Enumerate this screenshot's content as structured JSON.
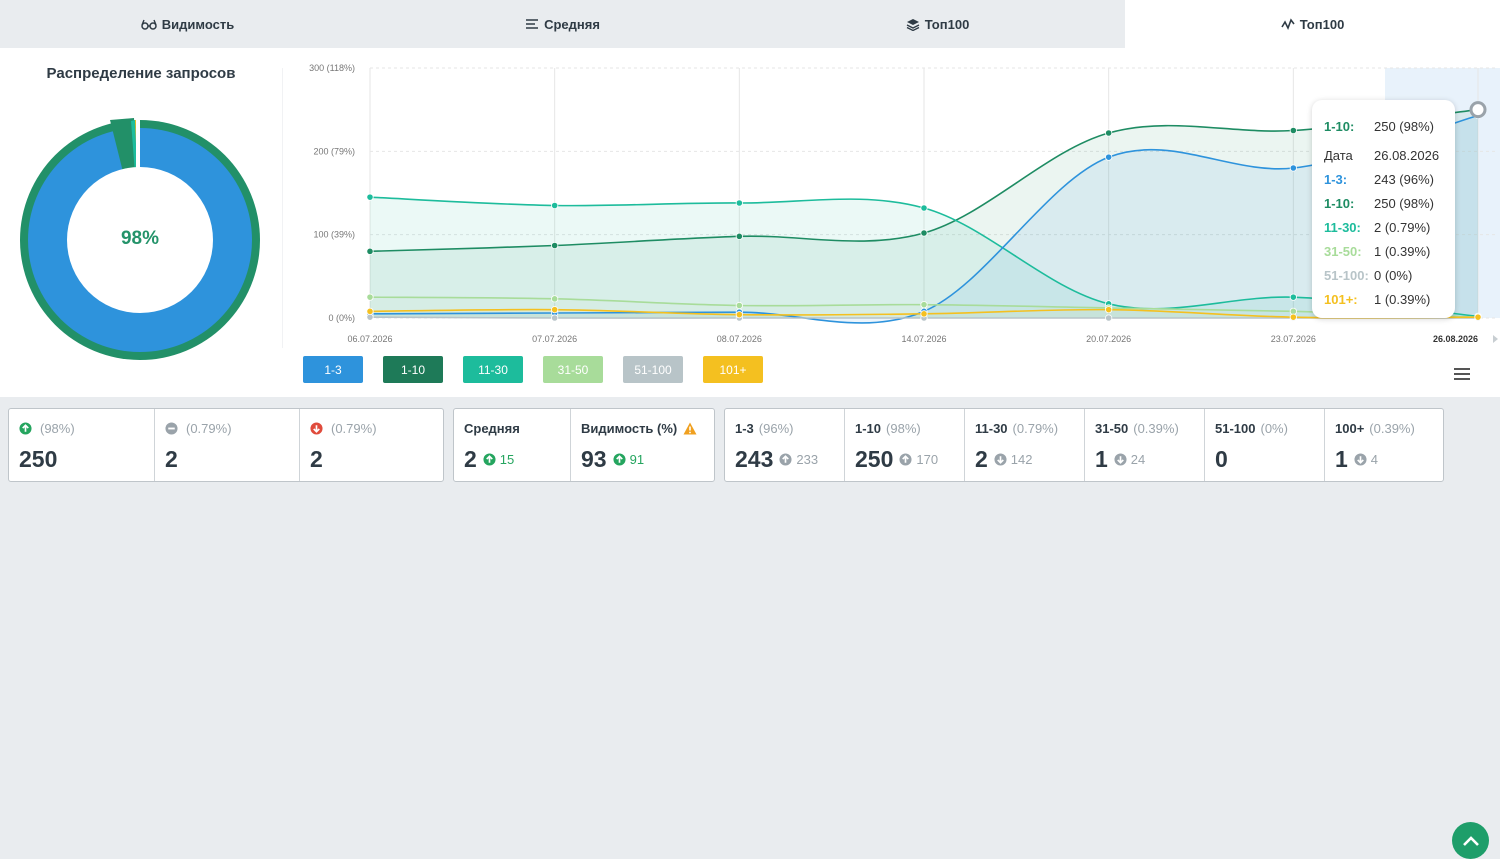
{
  "tabs": [
    {
      "label": "Видимость",
      "icon": "glasses-icon"
    },
    {
      "label": "Средняя",
      "icon": "average-lines-icon"
    },
    {
      "label": "Топ100",
      "icon": "layers-icon"
    },
    {
      "label": "Топ100",
      "icon": "activity-line-icon",
      "active": true
    }
  ],
  "donut": {
    "title": "Распределение запросов",
    "center_label": "98%",
    "colors": {
      "outer": "#229068",
      "inner": "#2e93dc",
      "accent": "#1dbc9c",
      "yellow": "#f4c020"
    }
  },
  "chart_data": {
    "type": "area",
    "x": [
      "06.07.2026",
      "07.07.2026",
      "08.07.2026",
      "14.07.2026",
      "20.07.2026",
      "23.07.2026",
      "26.08.2026"
    ],
    "y_ticks": [
      "0 (0%)",
      "100 (39%)",
      "200 (79%)",
      "300 (118%)"
    ],
    "ylim": [
      0,
      300
    ],
    "series": [
      {
        "name": "1-3",
        "color": "#2e93dc",
        "values": [
          5,
          6,
          7,
          8,
          193,
          180,
          243
        ]
      },
      {
        "name": "1-10",
        "color": "#1e8c63",
        "values": [
          80,
          87,
          98,
          102,
          222,
          225,
          250
        ]
      },
      {
        "name": "11-30",
        "color": "#1dbc9c",
        "values": [
          145,
          135,
          138,
          132,
          17,
          25,
          2
        ]
      },
      {
        "name": "31-50",
        "color": "#a8dc9a",
        "values": [
          25,
          23,
          15,
          16,
          12,
          8,
          1
        ]
      },
      {
        "name": "51-100",
        "color": "#b8c4c8",
        "values": [
          1,
          0,
          0,
          0,
          0,
          0,
          0
        ]
      },
      {
        "name": "101+",
        "color": "#f4c020",
        "values": [
          8,
          10,
          4,
          5,
          10,
          1,
          1
        ]
      }
    ],
    "legend": [
      "1-3",
      "1-10",
      "11-30",
      "31-50",
      "51-100",
      "101+"
    ]
  },
  "tooltip": {
    "header": {
      "key": "1-10:",
      "value": "250 (98%)"
    },
    "date": {
      "key": "Дата",
      "value": "26.08.2026"
    },
    "rows": [
      {
        "key": "1-3:",
        "value": "243 (96%)",
        "color": "#2e93dc"
      },
      {
        "key": "1-10:",
        "value": "250 (98%)",
        "color": "#1e8c63"
      },
      {
        "key": "11-30:",
        "value": "2 (0.79%)",
        "color": "#1dbc9c"
      },
      {
        "key": "31-50:",
        "value": "1 (0.39%)",
        "color": "#a8dc9a"
      },
      {
        "key": "51-100:",
        "value": "0 (0%)",
        "color": "#b8c4c8"
      },
      {
        "key": "101+:",
        "value": "1 (0.39%)",
        "color": "#f4c020"
      }
    ]
  },
  "stats_changes": [
    {
      "pct": "(98%)",
      "value": "250",
      "icon": "arrow-up-circle-icon",
      "color": "#25a55f"
    },
    {
      "pct": "(0.79%)",
      "value": "2",
      "icon": "minus-circle-icon",
      "color": "#9aa3aa"
    },
    {
      "pct": "(0.79%)",
      "value": "2",
      "icon": "arrow-down-circle-icon",
      "color": "#e04b3c"
    }
  ],
  "stats_avg": {
    "avg_label": "Средняя",
    "avg_value": "2",
    "avg_change": "15",
    "vis_label": "Видимость (%)",
    "vis_value": "93",
    "vis_change": "91"
  },
  "stats_ranges": [
    {
      "label": "1-3",
      "pct": "(96%)",
      "value": "243",
      "prev": "233",
      "icon": "arrow-up-circle-icon"
    },
    {
      "label": "1-10",
      "pct": "(98%)",
      "value": "250",
      "prev": "170",
      "icon": "arrow-up-circle-icon"
    },
    {
      "label": "11-30",
      "pct": "(0.79%)",
      "value": "2",
      "prev": "142",
      "icon": "arrow-down-circle-icon"
    },
    {
      "label": "31-50",
      "pct": "(0.39%)",
      "value": "1",
      "prev": "24",
      "icon": "arrow-down-circle-icon"
    },
    {
      "label": "51-100",
      "pct": "(0%)",
      "value": "0",
      "prev": "",
      "icon": ""
    },
    {
      "label": "100+",
      "pct": "(0.39%)",
      "value": "1",
      "prev": "4",
      "icon": "arrow-down-circle-icon"
    }
  ]
}
